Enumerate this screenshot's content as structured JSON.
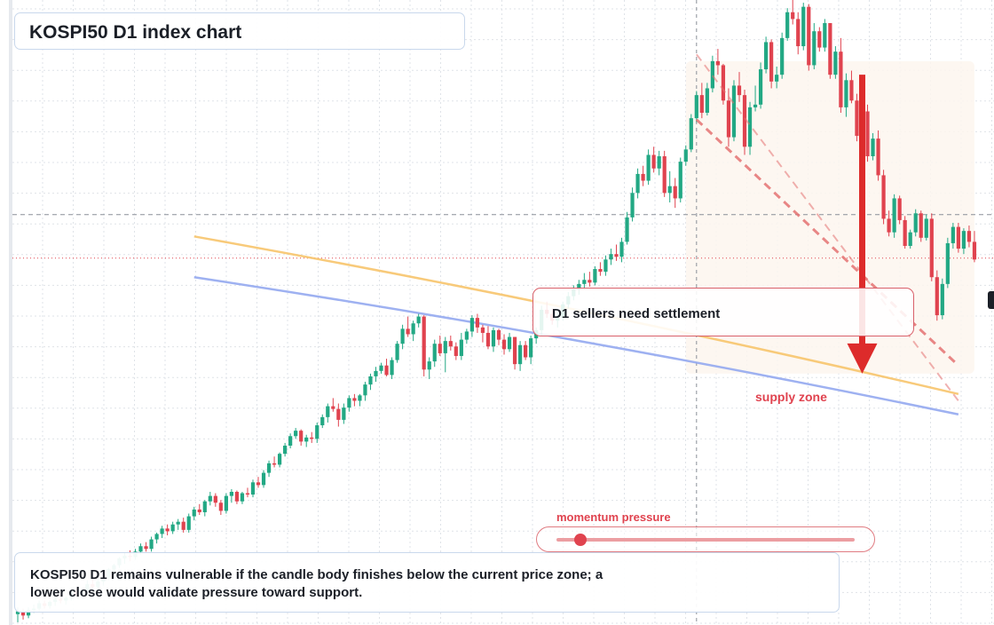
{
  "header": {
    "title": "KOSPI50 D1 index chart"
  },
  "callout": {
    "text": "D1 sellers need settlement"
  },
  "zone": {
    "label": "supply zone"
  },
  "momentum": {
    "label": "momentum pressure",
    "level": 0.08
  },
  "note": {
    "text": "KOSPI50 D1 remains vulnerable if the candle body finishes below the current price zone; a lower close would validate pressure toward support."
  },
  "colors": {
    "bull": "#22a884",
    "bear": "#e0434f",
    "ma_fast": "#f7c46c",
    "ma_slow": "#93a8f0",
    "channel": "#e57373",
    "arrow": "#dd2b2b",
    "grid": "#dfe3e8",
    "zone_fill": "#fdf6ef"
  },
  "chart_data": {
    "type": "candlestick",
    "title": "KOSPI50 D1 index chart",
    "candles": [
      [
        3,
        8,
        -3,
        5
      ],
      [
        5,
        7,
        -1,
        2
      ],
      [
        2,
        8,
        0,
        6
      ],
      [
        6,
        10,
        4,
        7
      ],
      [
        7,
        13,
        5,
        11
      ],
      [
        11,
        13,
        7,
        9
      ],
      [
        9,
        13,
        7,
        12
      ],
      [
        12,
        16,
        9,
        14
      ],
      [
        14,
        17,
        11,
        13
      ],
      [
        13,
        16,
        10,
        15
      ],
      [
        15,
        21,
        13,
        19
      ],
      [
        19,
        22,
        16,
        17
      ],
      [
        17,
        21,
        15,
        20
      ],
      [
        20,
        28,
        18,
        25
      ],
      [
        25,
        30,
        22,
        23
      ],
      [
        23,
        29,
        20,
        27
      ],
      [
        27,
        31,
        24,
        30
      ],
      [
        30,
        37,
        28,
        36
      ],
      [
        36,
        40,
        33,
        39
      ],
      [
        39,
        45,
        37,
        44
      ],
      [
        44,
        48,
        40,
        46
      ],
      [
        46,
        50,
        42,
        45
      ],
      [
        45,
        51,
        43,
        49
      ],
      [
        49,
        55,
        47,
        53
      ],
      [
        53,
        56,
        49,
        51
      ],
      [
        51,
        60,
        49,
        58
      ],
      [
        58,
        63,
        55,
        62
      ],
      [
        62,
        68,
        59,
        66
      ],
      [
        66,
        69,
        61,
        64
      ],
      [
        64,
        71,
        62,
        69
      ],
      [
        69,
        73,
        65,
        71
      ],
      [
        71,
        74,
        63,
        65
      ],
      [
        65,
        77,
        63,
        75
      ],
      [
        75,
        82,
        72,
        80
      ],
      [
        80,
        84,
        76,
        78
      ],
      [
        78,
        87,
        75,
        86
      ],
      [
        86,
        93,
        83,
        90
      ],
      [
        90,
        92,
        82,
        85
      ],
      [
        85,
        87,
        76,
        79
      ],
      [
        79,
        92,
        77,
        90
      ],
      [
        90,
        95,
        85,
        93
      ],
      [
        93,
        94,
        84,
        86
      ],
      [
        86,
        93,
        84,
        92
      ],
      [
        92,
        96,
        89,
        91
      ],
      [
        91,
        102,
        89,
        100
      ],
      [
        100,
        104,
        96,
        98
      ],
      [
        98,
        109,
        96,
        107
      ],
      [
        107,
        116,
        104,
        114
      ],
      [
        114,
        119,
        111,
        113
      ],
      [
        113,
        122,
        111,
        121
      ],
      [
        121,
        129,
        119,
        127
      ],
      [
        127,
        136,
        125,
        134
      ],
      [
        134,
        140,
        132,
        138
      ],
      [
        138,
        139,
        127,
        130
      ],
      [
        130,
        135,
        126,
        133
      ],
      [
        133,
        137,
        129,
        132
      ],
      [
        132,
        144,
        129,
        142
      ],
      [
        142,
        150,
        140,
        148
      ],
      [
        148,
        158,
        144,
        156
      ],
      [
        156,
        162,
        152,
        154
      ],
      [
        154,
        158,
        141,
        146
      ],
      [
        146,
        158,
        143,
        155
      ],
      [
        155,
        164,
        152,
        162
      ],
      [
        162,
        165,
        156,
        160
      ],
      [
        160,
        165,
        156,
        164
      ],
      [
        164,
        174,
        160,
        172
      ],
      [
        172,
        180,
        168,
        178
      ],
      [
        178,
        185,
        174,
        182
      ],
      [
        182,
        188,
        180,
        186
      ],
      [
        186,
        191,
        178,
        179
      ],
      [
        179,
        192,
        176,
        190
      ],
      [
        190,
        204,
        188,
        202
      ],
      [
        202,
        216,
        198,
        213
      ],
      [
        213,
        222,
        207,
        209
      ],
      [
        209,
        219,
        204,
        217
      ],
      [
        217,
        224,
        214,
        222
      ],
      [
        222,
        223,
        178,
        183
      ],
      [
        183,
        192,
        176,
        189
      ],
      [
        189,
        205,
        185,
        202
      ],
      [
        202,
        208,
        193,
        195
      ],
      [
        195,
        207,
        181,
        204
      ],
      [
        204,
        208,
        197,
        200
      ],
      [
        200,
        203,
        190,
        193
      ],
      [
        193,
        210,
        190,
        205
      ],
      [
        205,
        213,
        202,
        211
      ],
      [
        211,
        223,
        207,
        221
      ],
      [
        221,
        224,
        210,
        214
      ],
      [
        214,
        216,
        203,
        210
      ],
      [
        210,
        215,
        198,
        200
      ],
      [
        200,
        214,
        196,
        212
      ],
      [
        212,
        213,
        201,
        205
      ],
      [
        205,
        209,
        194,
        198
      ],
      [
        198,
        210,
        196,
        207
      ],
      [
        207,
        207,
        183,
        187
      ],
      [
        187,
        204,
        182,
        201
      ],
      [
        201,
        204,
        190,
        192
      ],
      [
        192,
        208,
        187,
        206
      ],
      [
        206,
        214,
        202,
        212
      ],
      [
        212,
        230,
        208,
        227
      ],
      [
        227,
        233,
        221,
        224
      ],
      [
        224,
        228,
        216,
        219
      ],
      [
        219,
        225,
        214,
        221
      ],
      [
        221,
        233,
        219,
        231
      ],
      [
        231,
        240,
        228,
        237
      ],
      [
        237,
        245,
        234,
        242
      ],
      [
        242,
        249,
        238,
        246
      ],
      [
        246,
        254,
        242,
        249
      ],
      [
        249,
        255,
        244,
        247
      ],
      [
        247,
        259,
        245,
        257
      ],
      [
        257,
        262,
        252,
        255
      ],
      [
        255,
        267,
        252,
        264
      ],
      [
        264,
        272,
        260,
        268
      ],
      [
        268,
        275,
        263,
        266
      ],
      [
        266,
        280,
        262,
        277
      ],
      [
        277,
        299,
        275,
        295
      ],
      [
        295,
        317,
        292,
        313
      ],
      [
        313,
        331,
        309,
        327
      ],
      [
        327,
        333,
        318,
        322
      ],
      [
        322,
        345,
        319,
        341
      ],
      [
        341,
        347,
        328,
        331
      ],
      [
        331,
        344,
        326,
        340
      ],
      [
        340,
        344,
        310,
        313
      ],
      [
        313,
        329,
        306,
        318
      ],
      [
        318,
        324,
        302,
        309
      ],
      [
        309,
        339,
        306,
        336
      ],
      [
        336,
        348,
        333,
        345
      ],
      [
        345,
        371,
        343,
        368
      ],
      [
        368,
        388,
        365,
        385
      ],
      [
        385,
        394,
        368,
        372
      ],
      [
        372,
        394,
        370,
        390
      ],
      [
        390,
        414,
        387,
        410
      ],
      [
        410,
        419,
        400,
        407
      ],
      [
        407,
        408,
        378,
        381
      ],
      [
        381,
        390,
        347,
        354
      ],
      [
        354,
        396,
        351,
        392
      ],
      [
        392,
        402,
        380,
        385
      ],
      [
        385,
        389,
        341,
        347
      ],
      [
        347,
        380,
        341,
        376
      ],
      [
        376,
        392,
        373,
        378
      ],
      [
        378,
        409,
        375,
        404
      ],
      [
        404,
        428,
        401,
        424
      ],
      [
        424,
        426,
        390,
        395
      ],
      [
        395,
        406,
        390,
        400
      ],
      [
        400,
        431,
        397,
        427
      ],
      [
        427,
        449,
        425,
        446
      ],
      [
        446,
        458,
        437,
        441
      ],
      [
        441,
        446,
        415,
        421
      ],
      [
        421,
        453,
        418,
        450
      ],
      [
        450,
        452,
        403,
        407
      ],
      [
        407,
        438,
        404,
        432
      ],
      [
        432,
        435,
        417,
        420
      ],
      [
        420,
        441,
        417,
        438
      ],
      [
        438,
        438,
        397,
        400
      ],
      [
        400,
        421,
        397,
        417
      ],
      [
        417,
        427,
        372,
        376
      ],
      [
        376,
        401,
        369,
        396
      ],
      [
        396,
        403,
        379,
        381
      ],
      [
        381,
        386,
        351,
        355
      ],
      [
        355,
        376,
        353,
        373
      ],
      [
        373,
        378,
        336,
        340
      ],
      [
        340,
        357,
        337,
        353
      ],
      [
        353,
        359,
        322,
        326
      ],
      [
        326,
        330,
        290,
        294
      ],
      [
        294,
        300,
        281,
        284
      ],
      [
        284,
        312,
        280,
        309
      ],
      [
        309,
        311,
        290,
        293
      ],
      [
        293,
        296,
        272,
        274
      ],
      [
        274,
        286,
        272,
        284
      ],
      [
        284,
        301,
        281,
        298
      ],
      [
        298,
        300,
        277,
        280
      ],
      [
        280,
        297,
        278,
        294
      ],
      [
        294,
        298,
        248,
        251
      ],
      [
        251,
        256,
        219,
        223
      ],
      [
        223,
        250,
        220,
        246
      ],
      [
        246,
        280,
        243,
        276
      ],
      [
        276,
        291,
        272,
        288
      ],
      [
        288,
        291,
        269,
        272
      ],
      [
        272,
        287,
        268,
        285
      ],
      [
        285,
        289,
        273,
        277
      ],
      [
        277,
        285,
        262,
        264
      ]
    ],
    "moving_averages": [
      {
        "label": "",
        "from": [
          34,
          281
        ],
        "to": [
          177,
          165
        ]
      },
      {
        "label": "",
        "from": [
          34,
          251
        ],
        "to": [
          177,
          150
        ]
      }
    ],
    "channel_lines": [
      {
        "from": [
          128,
          415
        ],
        "to": [
          177,
          160
        ]
      },
      {
        "from": [
          128,
          367
        ],
        "to": [
          177,
          186
        ]
      }
    ],
    "current_price": 297,
    "last_close_reference": 265,
    "supply_zone": {
      "x": [
        126,
        180
      ],
      "y": [
        180,
        410
      ]
    },
    "target_arrow": {
      "x": 159,
      "from": 400,
      "to": 180
    },
    "crosshair_x": 128,
    "xlim": [
      0,
      182
    ],
    "ylim": [
      -5,
      455
    ],
    "grid": true,
    "legend": "none"
  }
}
